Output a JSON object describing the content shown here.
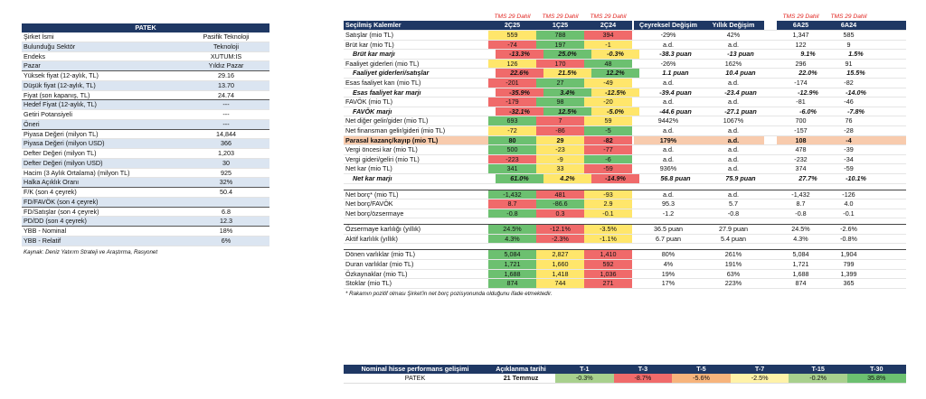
{
  "left": {
    "title": "PATEK",
    "rows": [
      {
        "label": "Şirket İsmi",
        "value": "Pasifik Teknoloji"
      },
      {
        "label": "Bulunduğu Sektör",
        "value": "Teknoloji"
      },
      {
        "label": "Endeks",
        "value": "XUTUM:IS"
      },
      {
        "label": "Pazar",
        "value": "Yıldız Pazar"
      },
      {
        "label": "Yüksek fiyat (12-aylık, TL)",
        "value": "29.16"
      },
      {
        "label": "Düşük fiyat (12-aylık, TL)",
        "value": "13.70"
      },
      {
        "label": "Fiyat (son kapanış, TL)",
        "value": "24.74"
      },
      {
        "label": "Hedef Fiyat (12-aylık, TL)",
        "value": "---"
      },
      {
        "label": "Getiri Potansiyeli",
        "value": "---"
      },
      {
        "label": "Öneri",
        "value": "---"
      },
      {
        "label": "Piyasa Değeri (milyon TL)",
        "value": "14,844"
      },
      {
        "label": "Piyasa Değeri (milyon USD)",
        "value": "366"
      },
      {
        "label": "Defter Değeri (milyon TL)",
        "value": "1,203"
      },
      {
        "label": "Defter Değeri (milyon USD)",
        "value": "30"
      },
      {
        "label": "Hacim (3 Aylık Ortalama) (milyon TL)",
        "value": "925"
      },
      {
        "label": "Halka Açıklık Oranı",
        "value": "32%"
      },
      {
        "label": "F/K (son 4 çeyrek)",
        "value": "50.4"
      },
      {
        "label": "FD/FAVÖK (son 4 çeyrek)",
        "value": ""
      },
      {
        "label": "FD/Satışlar (son 4 çeyrek)",
        "value": "6.8"
      },
      {
        "label": "PD/DD (son 4 çeyrek)",
        "value": "12.3"
      },
      {
        "label": "YBB - Nominal",
        "value": "18%"
      },
      {
        "label": "YBB - Relatif",
        "value": "6%"
      }
    ],
    "source": "Kaynak: Deniz Yatırım Strateji ve Araştırma, Rasyonet"
  },
  "right": {
    "tms_label": "TMS 29 Dahil",
    "headers": [
      "Seçilmiş Kalemler",
      "2Ç25",
      "1Ç25",
      "2Ç24",
      "Çeyreksel Değişim",
      "Yıllık Değişim",
      "6A25",
      "6A24"
    ],
    "rows": [
      {
        "label": "Satışlar (mio TL)",
        "v": [
          "559",
          "788",
          "394",
          "-29%",
          "42%",
          "1,347",
          "585"
        ],
        "cls": [
          "y",
          "g",
          "r"
        ]
      },
      {
        "label": "Brüt kar (mio TL)",
        "v": [
          "-74",
          "197",
          "-1",
          "a.d.",
          "a.d.",
          "122",
          "9"
        ],
        "cls": [
          "r",
          "g",
          "y"
        ]
      },
      {
        "label": "Brüt kar marjı",
        "v": [
          "-13.3%",
          "25.0%",
          "-0.3%",
          "-38.3 puan",
          "-13 puan",
          "9.1%",
          "1.5%"
        ],
        "cls": [
          "r",
          "g",
          "y"
        ],
        "type": "margin"
      },
      {
        "label": "Faaliyet giderleri (mio TL)",
        "v": [
          "126",
          "170",
          "48",
          "-26%",
          "162%",
          "296",
          "91"
        ],
        "cls": [
          "y",
          "r",
          "g"
        ]
      },
      {
        "label": "Faaliyet giderleri/satışlar",
        "v": [
          "22.6%",
          "21.5%",
          "12.2%",
          "1.1 puan",
          "10.4 puan",
          "22.0%",
          "15.5%"
        ],
        "cls": [
          "r",
          "y",
          "g"
        ],
        "type": "margin"
      },
      {
        "label": "Esas faaliyet karı (mio TL)",
        "v": [
          "-201",
          "27",
          "-49",
          "a.d.",
          "a.d.",
          "-174",
          "-82"
        ],
        "cls": [
          "r",
          "g",
          "y"
        ]
      },
      {
        "label": "Esas faaliyet kar marjı",
        "v": [
          "-35.9%",
          "3.4%",
          "-12.5%",
          "-39.4 puan",
          "-23.4 puan",
          "-12.9%",
          "-14.0%"
        ],
        "cls": [
          "r",
          "g",
          "y"
        ],
        "type": "margin"
      },
      {
        "label": "FAVÖK (mio TL)",
        "v": [
          "-179",
          "98",
          "-20",
          "a.d.",
          "a.d.",
          "-81",
          "-46"
        ],
        "cls": [
          "r",
          "g",
          "y"
        ]
      },
      {
        "label": "FAVÖK marjı",
        "v": [
          "-32.1%",
          "12.5%",
          "-5.0%",
          "-44.6 puan",
          "-27.1 puan",
          "-6.0%",
          "-7.8%"
        ],
        "cls": [
          "r",
          "g",
          "y"
        ],
        "type": "margin"
      },
      {
        "label": "Net diğer gelir/gider (mio TL)",
        "v": [
          "693",
          "7",
          "59",
          "9442%",
          "1067%",
          "700",
          "76"
        ],
        "cls": [
          "g",
          "r",
          "y"
        ]
      },
      {
        "label": "Net finansman gelir/gideri (mio TL)",
        "v": [
          "-72",
          "-86",
          "-5",
          "a.d.",
          "a.d.",
          "-157",
          "-28"
        ],
        "cls": [
          "y",
          "r",
          "g"
        ]
      },
      {
        "label": "Parasal kazanç/kayıp (mio TL)",
        "v": [
          "80",
          "29",
          "-82",
          "179%",
          "a.d.",
          "108",
          "-4"
        ],
        "cls": [
          "g",
          "y",
          "r"
        ],
        "type": "hl"
      },
      {
        "label": "Vergi öncesi kar (mio TL)",
        "v": [
          "500",
          "-23",
          "-77",
          "a.d.",
          "a.d.",
          "478",
          "-39"
        ],
        "cls": [
          "g",
          "y",
          "r"
        ]
      },
      {
        "label": "Vergi gideri/geliri (mio TL)",
        "v": [
          "-223",
          "-9",
          "-6",
          "a.d.",
          "a.d.",
          "-232",
          "-34"
        ],
        "cls": [
          "r",
          "y",
          "g"
        ]
      },
      {
        "label": "Net kar (mio TL)",
        "v": [
          "341",
          "33",
          "-59",
          "936%",
          "a.d.",
          "374",
          "-59"
        ],
        "cls": [
          "g",
          "y",
          "r"
        ]
      },
      {
        "label": "Net kar marjı",
        "v": [
          "61.0%",
          "4.2%",
          "-14.9%",
          "56.8 puan",
          "75.9 puan",
          "27.7%",
          "-10.1%"
        ],
        "cls": [
          "g",
          "y",
          "r"
        ],
        "type": "margin"
      },
      {
        "type": "spacer"
      },
      {
        "label": "Net borç* (mio TL)",
        "v": [
          "-1,432",
          "481",
          "-93",
          "a.d.",
          "a.d.",
          "-1,432",
          "-126"
        ],
        "cls": [
          "g",
          "r",
          "y"
        ]
      },
      {
        "label": "Net borç/FAVÖK",
        "v": [
          "8.7",
          "-86.6",
          "2.9",
          "95.3",
          "5.7",
          "8.7",
          "4.0"
        ],
        "cls": [
          "r",
          "g",
          "y"
        ]
      },
      {
        "label": "Net borç/özsermaye",
        "v": [
          "-0.8",
          "0.3",
          "-0.1",
          "-1.2",
          "-0.8",
          "-0.8",
          "-0.1"
        ],
        "cls": [
          "g",
          "r",
          "y"
        ]
      },
      {
        "type": "spacer"
      },
      {
        "label": "Özsermaye karlılığı (yıllık)",
        "v": [
          "24.5%",
          "-12.1%",
          "-3.5%",
          "36.5 puan",
          "27.9 puan",
          "24.5%",
          "-2.6%"
        ],
        "cls": [
          "g",
          "r",
          "y"
        ]
      },
      {
        "label": "Aktif karlılık (yıllık)",
        "v": [
          "4.3%",
          "-2.3%",
          "-1.1%",
          "6.7 puan",
          "5.4 puan",
          "4.3%",
          "-0.8%"
        ],
        "cls": [
          "g",
          "r",
          "y"
        ]
      },
      {
        "type": "spacer"
      },
      {
        "label": "Dönen varlıklar (mio TL)",
        "v": [
          "5,084",
          "2,827",
          "1,410",
          "80%",
          "261%",
          "5,084",
          "1,904"
        ],
        "cls": [
          "g",
          "y",
          "r"
        ]
      },
      {
        "label": "Duran varlıklar (mio TL)",
        "v": [
          "1,721",
          "1,660",
          "592",
          "4%",
          "191%",
          "1,721",
          "799"
        ],
        "cls": [
          "g",
          "y",
          "r"
        ]
      },
      {
        "label": "Özkaynaklar (mio TL)",
        "v": [
          "1,688",
          "1,418",
          "1,036",
          "19%",
          "63%",
          "1,688",
          "1,399"
        ],
        "cls": [
          "g",
          "y",
          "r"
        ]
      },
      {
        "label": "Stoklar (mio TL)",
        "v": [
          "874",
          "744",
          "271",
          "17%",
          "223%",
          "874",
          "365"
        ],
        "cls": [
          "g",
          "y",
          "r"
        ]
      }
    ],
    "note": "* Rakamın pozitif olması Şirket'in net borç pozisyonunda olduğunu ifade etmektedir."
  },
  "bottom": {
    "headers": [
      "Nominal hisse performans gelişimi",
      "Açıklanma tarihi",
      "T-1",
      "T-3",
      "T-5",
      "T-7",
      "T-15",
      "T-30"
    ],
    "row": {
      "label": "PATEK",
      "date": "21 Temmuz",
      "v": [
        "-0.3%",
        "-8.7%",
        "-5.6%",
        "-2.5%",
        "-0.2%",
        "35.8%"
      ],
      "cls": [
        "lg",
        "r",
        "o",
        "ly",
        "lg",
        "g"
      ]
    }
  },
  "colors": {
    "header_bg": "#1f3864",
    "green": "#6cc070",
    "yellow": "#ffe66b",
    "red": "#f06a6a",
    "highlight": "#f8cbad",
    "tms_red": "#e0201b"
  }
}
